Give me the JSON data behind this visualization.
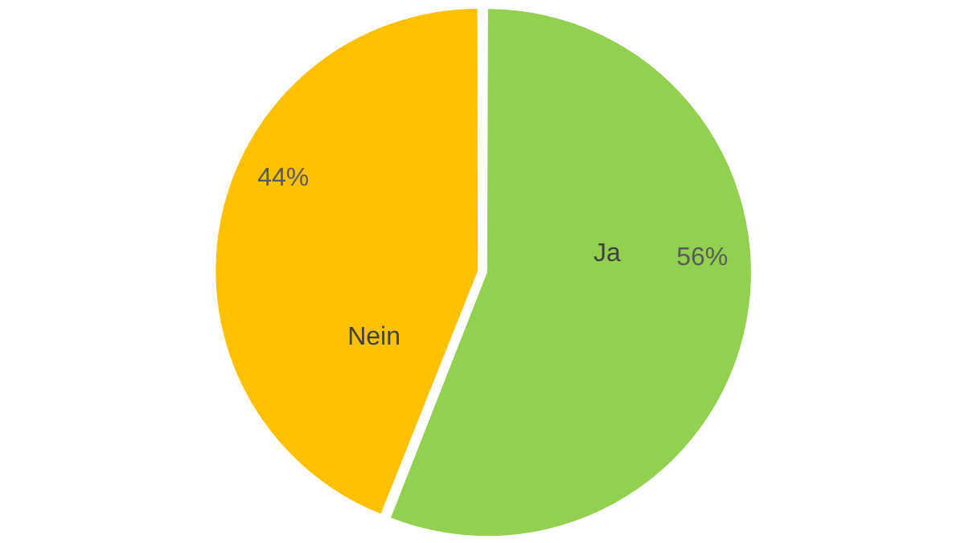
{
  "chart_data": {
    "type": "pie",
    "categories": [
      "Ja",
      "Nein"
    ],
    "values": [
      56,
      44
    ],
    "colors": [
      "#92d050",
      "#ffc000"
    ],
    "value_labels": [
      "56%",
      "44%"
    ],
    "legend": false
  }
}
